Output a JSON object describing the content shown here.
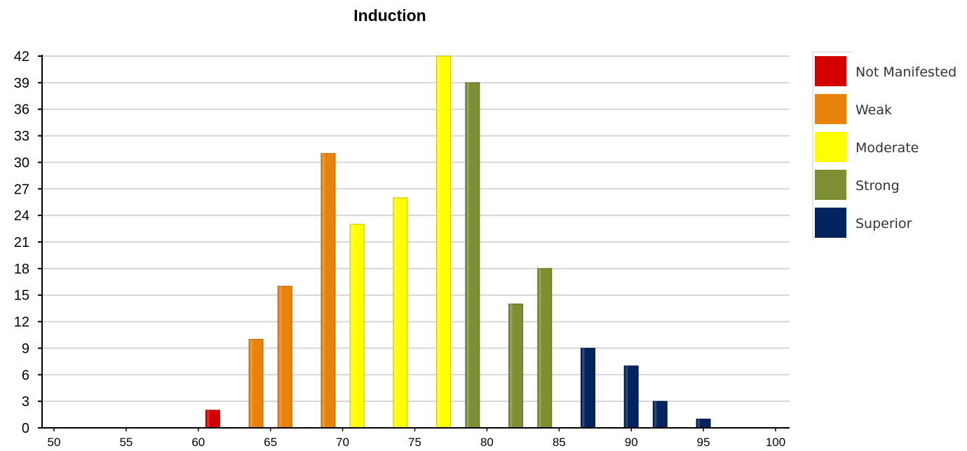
{
  "chart_data": {
    "type": "bar",
    "title": "Induction",
    "xlabel": "",
    "ylabel": "",
    "xlim": [
      50,
      100
    ],
    "ylim": [
      0,
      42
    ],
    "x_ticks": [
      50,
      55,
      60,
      65,
      70,
      75,
      80,
      85,
      90,
      95,
      100
    ],
    "y_ticks": [
      0,
      3,
      6,
      9,
      12,
      15,
      18,
      21,
      24,
      27,
      30,
      33,
      36,
      39,
      42
    ],
    "grid": true,
    "legend_position": "right",
    "series": [
      {
        "name": "Not Manifested",
        "color": "#d40000",
        "points": [
          {
            "x": 61,
            "y": 2
          }
        ]
      },
      {
        "name": "Weak",
        "color": "#e8820a",
        "points": [
          {
            "x": 64,
            "y": 10
          },
          {
            "x": 66,
            "y": 16
          },
          {
            "x": 69,
            "y": 31
          }
        ]
      },
      {
        "name": "Moderate",
        "color": "#ffff00",
        "points": [
          {
            "x": 71,
            "y": 23
          },
          {
            "x": 74,
            "y": 26
          },
          {
            "x": 77,
            "y": 42
          }
        ]
      },
      {
        "name": "Strong",
        "color": "#7d8f32",
        "points": [
          {
            "x": 79,
            "y": 39
          },
          {
            "x": 82,
            "y": 14
          },
          {
            "x": 84,
            "y": 18
          }
        ]
      },
      {
        "name": "Superior",
        "color": "#03235f",
        "points": [
          {
            "x": 87,
            "y": 9
          },
          {
            "x": 90,
            "y": 7
          },
          {
            "x": 92,
            "y": 3
          },
          {
            "x": 95,
            "y": 1
          }
        ]
      }
    ]
  }
}
